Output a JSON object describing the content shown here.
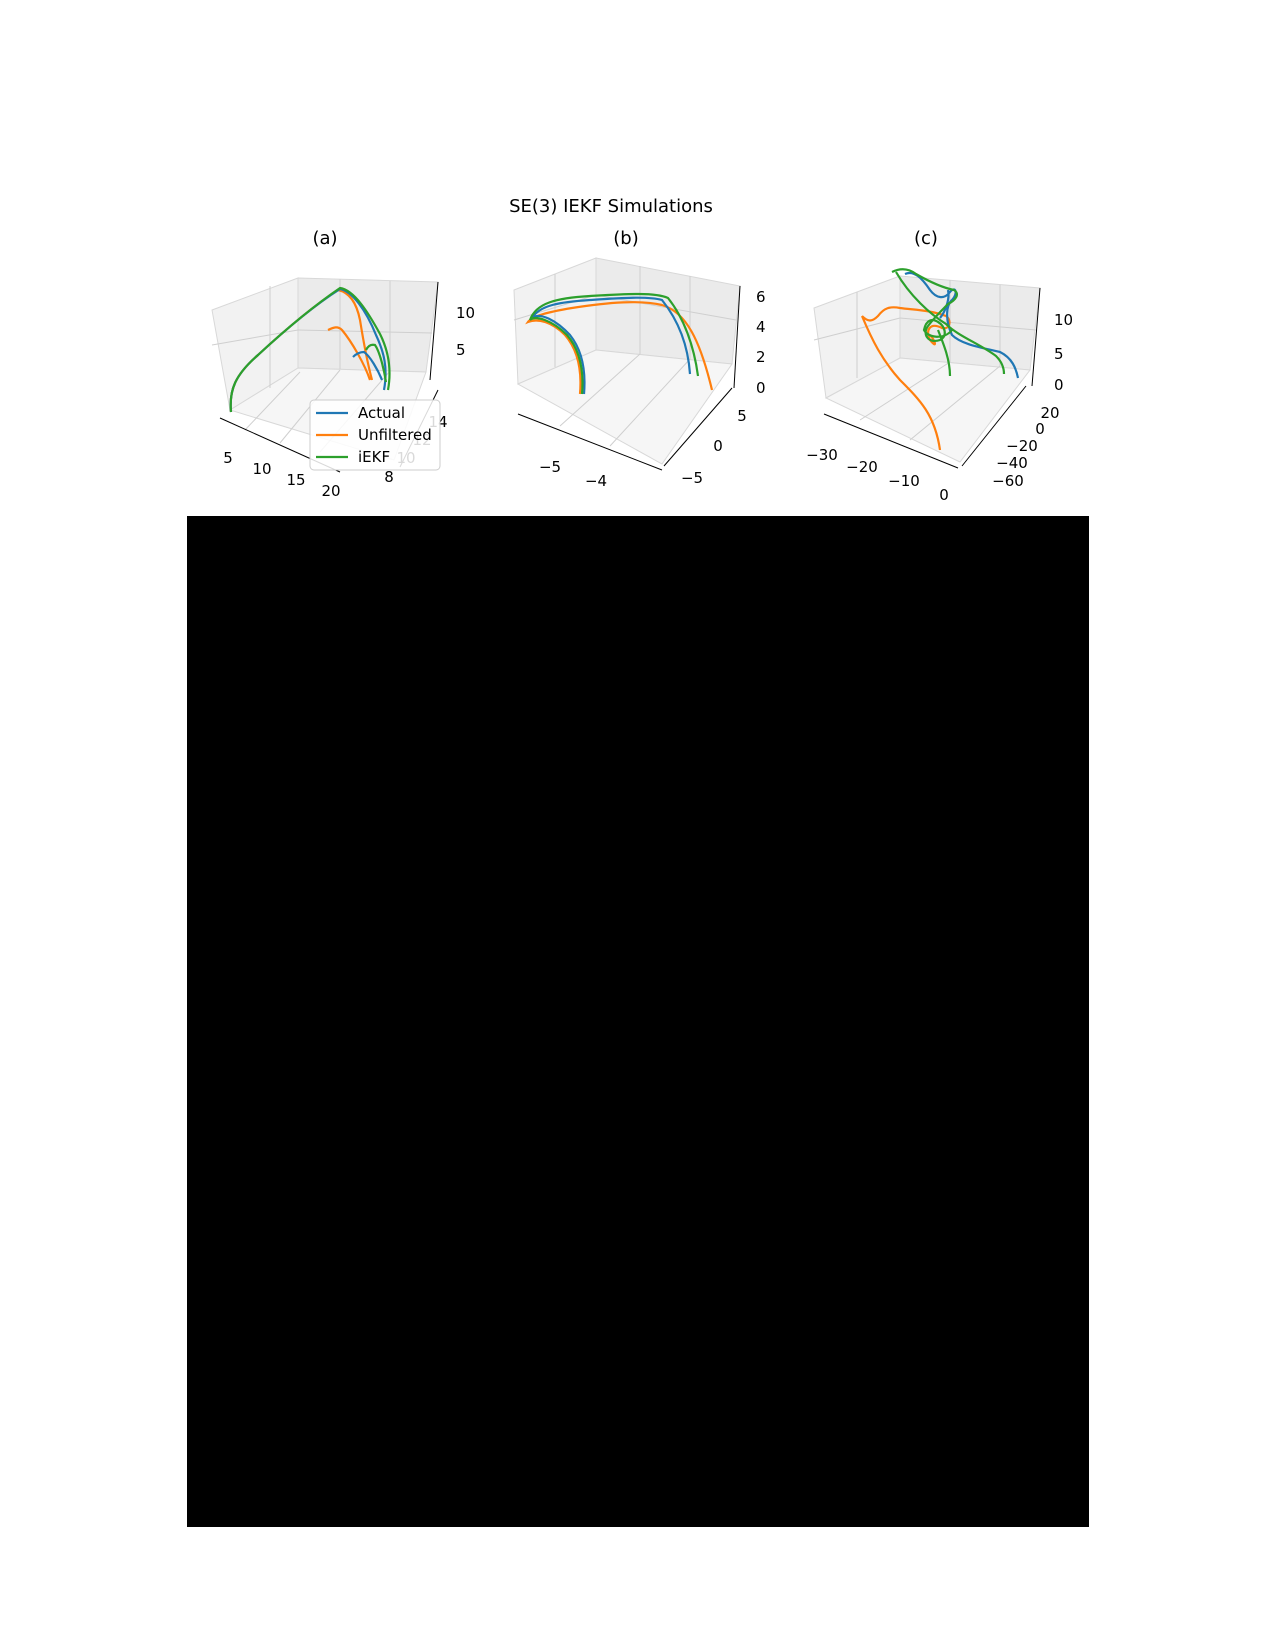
{
  "figure": {
    "title": "SE(3) IEKF Simulations",
    "colors": {
      "actual": "#1f77b4",
      "unfiltered": "#ff7f0e",
      "iekf": "#2ca02c",
      "pane": "#f2f2f2",
      "grid": "#cfcfcf"
    }
  },
  "chart_data": [
    {
      "type": "line",
      "title": "(a)",
      "projection": "3d",
      "x_ticks": [
        "5",
        "10",
        "15",
        "20"
      ],
      "y_ticks": [
        "8",
        "10",
        "12",
        "14"
      ],
      "z_ticks": [
        "5",
        "10"
      ],
      "xlim": [
        3,
        22
      ],
      "ylim": [
        7,
        15
      ],
      "zlim": [
        0,
        13
      ],
      "legend": {
        "placement": "lower-center",
        "entries": [
          "Actual",
          "Unfiltered",
          "iEKF"
        ]
      },
      "series": [
        {
          "name": "Actual",
          "points": [
            [
              4,
              8,
              0
            ],
            [
              5,
              9,
              4
            ],
            [
              7,
              10,
              7
            ],
            [
              10,
              11,
              10
            ],
            [
              13,
              12,
              12
            ],
            [
              16,
              13,
              12.5
            ],
            [
              18,
              13.5,
              10
            ],
            [
              19,
              14,
              6
            ],
            [
              20,
              14,
              2
            ],
            [
              19,
              13,
              3
            ],
            [
              18,
              12,
              4
            ],
            [
              19,
              12,
              2
            ]
          ]
        },
        {
          "name": "Unfiltered",
          "points": [
            [
              4,
              8,
              0
            ],
            [
              5,
              9,
              4
            ],
            [
              7,
              10,
              7
            ],
            [
              10,
              11,
              10
            ],
            [
              13,
              12,
              12
            ],
            [
              15,
              12.5,
              12.5
            ],
            [
              16,
              12.5,
              10
            ],
            [
              17,
              12,
              5
            ],
            [
              17,
              11,
              1
            ],
            [
              16,
              10,
              3
            ],
            [
              15,
              10,
              5
            ],
            [
              14,
              10,
              6
            ]
          ]
        },
        {
          "name": "iEKF",
          "points": [
            [
              4,
              8,
              0
            ],
            [
              5,
              9,
              4
            ],
            [
              7,
              10,
              7
            ],
            [
              10,
              11,
              10
            ],
            [
              13,
              12,
              12
            ],
            [
              16,
              13,
              12.5
            ],
            [
              18,
              13.5,
              10
            ],
            [
              20,
              14,
              6
            ],
            [
              21,
              14,
              2
            ],
            [
              20,
              13,
              4
            ],
            [
              19,
              12,
              5
            ],
            [
              20,
              12,
              2
            ]
          ]
        }
      ]
    },
    {
      "type": "line",
      "title": "(b)",
      "projection": "3d",
      "x_ticks": [
        "−5",
        "−4"
      ],
      "y_ticks": [
        "−5",
        "0",
        "5"
      ],
      "z_ticks": [
        "0",
        "2",
        "4",
        "6"
      ],
      "xlim": [
        -6,
        -3
      ],
      "ylim": [
        -7,
        7
      ],
      "zlim": [
        0,
        6.5
      ],
      "series": [
        {
          "name": "Actual",
          "points": [
            [
              -5.3,
              -3,
              0
            ],
            [
              -5.4,
              -2,
              2
            ],
            [
              -5.6,
              -1,
              4
            ],
            [
              -5.8,
              0,
              5
            ],
            [
              -5.5,
              1,
              5.3
            ],
            [
              -5,
              2,
              5.5
            ],
            [
              -4.5,
              3,
              5.6
            ],
            [
              -4.1,
              4,
              5.4
            ],
            [
              -3.8,
              4.5,
              4
            ],
            [
              -3.6,
              5,
              2
            ],
            [
              -3.5,
              5,
              1
            ]
          ]
        },
        {
          "name": "Unfiltered",
          "points": [
            [
              -5.3,
              -3,
              0
            ],
            [
              -5.4,
              -2,
              2
            ],
            [
              -5.6,
              -1,
              4
            ],
            [
              -5.8,
              0,
              4.8
            ],
            [
              -5.5,
              1,
              5
            ],
            [
              -5,
              2,
              5.1
            ],
            [
              -4.5,
              3,
              5.2
            ],
            [
              -4,
              4,
              5.1
            ],
            [
              -3.6,
              5,
              4
            ],
            [
              -3.3,
              5.5,
              2
            ],
            [
              -3.2,
              5.5,
              0.5
            ]
          ]
        },
        {
          "name": "iEKF",
          "points": [
            [
              -5.2,
              -3,
              0
            ],
            [
              -5.3,
              -2,
              2
            ],
            [
              -5.5,
              -1,
              4
            ],
            [
              -5.8,
              0,
              5.2
            ],
            [
              -5.5,
              1,
              5.5
            ],
            [
              -5,
              2,
              5.7
            ],
            [
              -4.5,
              3,
              5.8
            ],
            [
              -4.1,
              4,
              5.6
            ],
            [
              -3.7,
              4.5,
              4.2
            ],
            [
              -3.5,
              5,
              2.2
            ],
            [
              -3.4,
              5,
              1
            ]
          ]
        }
      ]
    },
    {
      "type": "line",
      "title": "(c)",
      "projection": "3d",
      "x_ticks": [
        "−30",
        "−20",
        "−10",
        "0"
      ],
      "y_ticks": [
        "−60",
        "−40",
        "−20",
        "0",
        "20"
      ],
      "z_ticks": [
        "0",
        "5",
        "10"
      ],
      "xlim": [
        -35,
        3
      ],
      "ylim": [
        -65,
        25
      ],
      "zlim": [
        0,
        15
      ],
      "series": [
        {
          "name": "Actual",
          "points": [
            [
              -25,
              -5,
              14
            ],
            [
              -22,
              -8,
              13
            ],
            [
              -18,
              -5,
              11
            ],
            [
              -15,
              0,
              10
            ],
            [
              -17,
              5,
              9
            ],
            [
              -14,
              8,
              8
            ],
            [
              -12,
              12,
              8
            ],
            [
              -10,
              10,
              7
            ],
            [
              -8,
              5,
              12
            ],
            [
              -10,
              15,
              11
            ],
            [
              -5,
              20,
              8
            ],
            [
              0,
              25,
              5
            ],
            [
              2,
              22,
              2
            ]
          ]
        },
        {
          "name": "Unfiltered",
          "points": [
            [
              -30,
              -20,
              9
            ],
            [
              -28,
              -25,
              8
            ],
            [
              -26,
              -20,
              10
            ],
            [
              -22,
              -15,
              10
            ],
            [
              -18,
              -10,
              9
            ],
            [
              -14,
              -5,
              9
            ],
            [
              -16,
              -15,
              6
            ],
            [
              -14,
              -25,
              4
            ],
            [
              -10,
              -35,
              3
            ],
            [
              -5,
              -45,
              2
            ],
            [
              -2,
              -55,
              0.5
            ]
          ]
        },
        {
          "name": "iEKF",
          "points": [
            [
              -26,
              -5,
              14
            ],
            [
              -24,
              -6,
              14.5
            ],
            [
              -20,
              -4,
              12
            ],
            [
              -16,
              0,
              11
            ],
            [
              -18,
              3,
              9
            ],
            [
              -16,
              6,
              8
            ],
            [
              -14,
              10,
              8
            ],
            [
              -12,
              8,
              7
            ],
            [
              -10,
              12,
              10
            ],
            [
              -12,
              14,
              9
            ],
            [
              -8,
              15,
              4
            ],
            [
              -10,
              14,
              0.5
            ],
            [
              -4,
              18,
              6
            ],
            [
              -2,
              20,
              3
            ],
            [
              0,
              20,
              1
            ]
          ]
        }
      ]
    }
  ]
}
